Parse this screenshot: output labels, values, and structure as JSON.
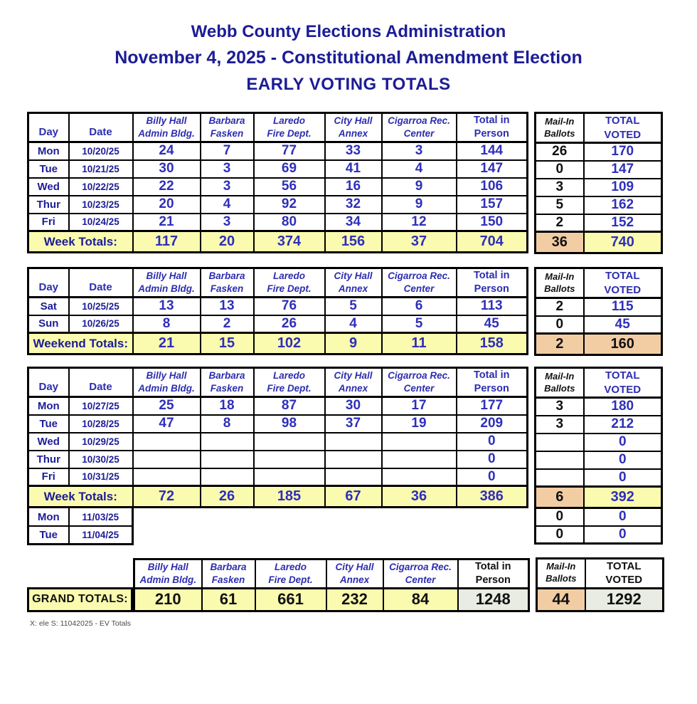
{
  "colors": {
    "blue": "#2f2fba",
    "blue_h": "#2d2db0",
    "navy": "#1c1c96",
    "black_text": "#111111",
    "yellow_bg": "#fbfbb0",
    "peach_bg": "#f2cda4",
    "gray_bg": "#e9ece3",
    "border": "#000000"
  },
  "header": {
    "line1": "Webb County Elections Administration",
    "line2": "November 4, 2025 - Constitutional Amendment Election",
    "line3": "EARLY VOTING TOTALS"
  },
  "columns": {
    "day": "Day",
    "date": "Date",
    "sites": [
      [
        "Billy Hall",
        "Admin Bldg."
      ],
      [
        "Barbara",
        "Fasken"
      ],
      [
        "Laredo",
        "Fire Dept."
      ],
      [
        "City Hall",
        "Annex"
      ],
      [
        "Cigarroa Rec.",
        "Center"
      ],
      [
        "Total in",
        "Person"
      ]
    ],
    "mail_in": [
      "Mail-In",
      "Ballots"
    ],
    "total_voted": [
      "TOTAL",
      "VOTED"
    ]
  },
  "tables": [
    {
      "name": "week1",
      "rows": [
        {
          "day": "Mon",
          "date": "10/20/25",
          "values": [
            "24",
            "7",
            "77",
            "33",
            "3",
            "144"
          ],
          "mail_in": "26",
          "total_voted": "170"
        },
        {
          "day": "Tue",
          "date": "10/21/25",
          "values": [
            "30",
            "3",
            "69",
            "41",
            "4",
            "147"
          ],
          "mail_in": "0",
          "total_voted": "147"
        },
        {
          "day": "Wed",
          "date": "10/22/25",
          "values": [
            "22",
            "3",
            "56",
            "16",
            "9",
            "106"
          ],
          "mail_in": "3",
          "total_voted": "109"
        },
        {
          "day": "Thur",
          "date": "10/23/25",
          "values": [
            "20",
            "4",
            "92",
            "32",
            "9",
            "157"
          ],
          "mail_in": "5",
          "total_voted": "162"
        },
        {
          "day": "Fri",
          "date": "10/24/25",
          "values": [
            "21",
            "3",
            "80",
            "34",
            "12",
            "150"
          ],
          "mail_in": "2",
          "total_voted": "152"
        }
      ],
      "totals": {
        "label": "Week Totals:",
        "values": [
          "117",
          "20",
          "374",
          "156",
          "37",
          "704"
        ],
        "mail_in": "36",
        "total_voted": "740",
        "total_voted_peach": false
      }
    },
    {
      "name": "weekend",
      "rows": [
        {
          "day": "Sat",
          "date": "10/25/25",
          "values": [
            "13",
            "13",
            "76",
            "5",
            "6",
            "113"
          ],
          "mail_in": "2",
          "total_voted": "115"
        },
        {
          "day": "Sun",
          "date": "10/26/25",
          "values": [
            "8",
            "2",
            "26",
            "4",
            "5",
            "45"
          ],
          "mail_in": "0",
          "total_voted": "45"
        }
      ],
      "totals": {
        "label": "Weekend Totals:",
        "values": [
          "21",
          "15",
          "102",
          "9",
          "11",
          "158"
        ],
        "mail_in": "2",
        "total_voted": "160",
        "total_voted_peach": true
      }
    },
    {
      "name": "week2",
      "rows": [
        {
          "day": "Mon",
          "date": "10/27/25",
          "values": [
            "25",
            "18",
            "87",
            "30",
            "17",
            "177"
          ],
          "mail_in": "3",
          "total_voted": "180"
        },
        {
          "day": "Tue",
          "date": "10/28/25",
          "values": [
            "47",
            "8",
            "98",
            "37",
            "19",
            "209"
          ],
          "mail_in": "3",
          "total_voted": "212"
        },
        {
          "day": "Wed",
          "date": "10/29/25",
          "values": [
            "",
            "",
            "",
            "",
            "",
            "0"
          ],
          "mail_in": "",
          "total_voted": "0"
        },
        {
          "day": "Thur",
          "date": "10/30/25",
          "values": [
            "",
            "",
            "",
            "",
            "",
            "0"
          ],
          "mail_in": "",
          "total_voted": "0"
        },
        {
          "day": "Fri",
          "date": "10/31/25",
          "values": [
            "",
            "",
            "",
            "",
            "",
            "0"
          ],
          "mail_in": "",
          "total_voted": "0"
        }
      ],
      "totals": {
        "label": "Week Totals:",
        "values": [
          "72",
          "26",
          "185",
          "67",
          "36",
          "386"
        ],
        "mail_in": "6",
        "total_voted": "392",
        "total_voted_peach": false
      },
      "extra_rows": [
        {
          "day": "Mon",
          "date": "11/03/25",
          "mail_in": "0",
          "total_voted": "0"
        },
        {
          "day": "Tue",
          "date": "11/04/25",
          "mail_in": "0",
          "total_voted": "0"
        }
      ]
    }
  ],
  "grand": {
    "label": "GRAND TOTALS:",
    "values": [
      "210",
      "61",
      "661",
      "232",
      "84",
      "1248"
    ],
    "mail_in": "44",
    "total_voted": "1292"
  },
  "footer": "X: ele S:  11042025 - EV Totals"
}
